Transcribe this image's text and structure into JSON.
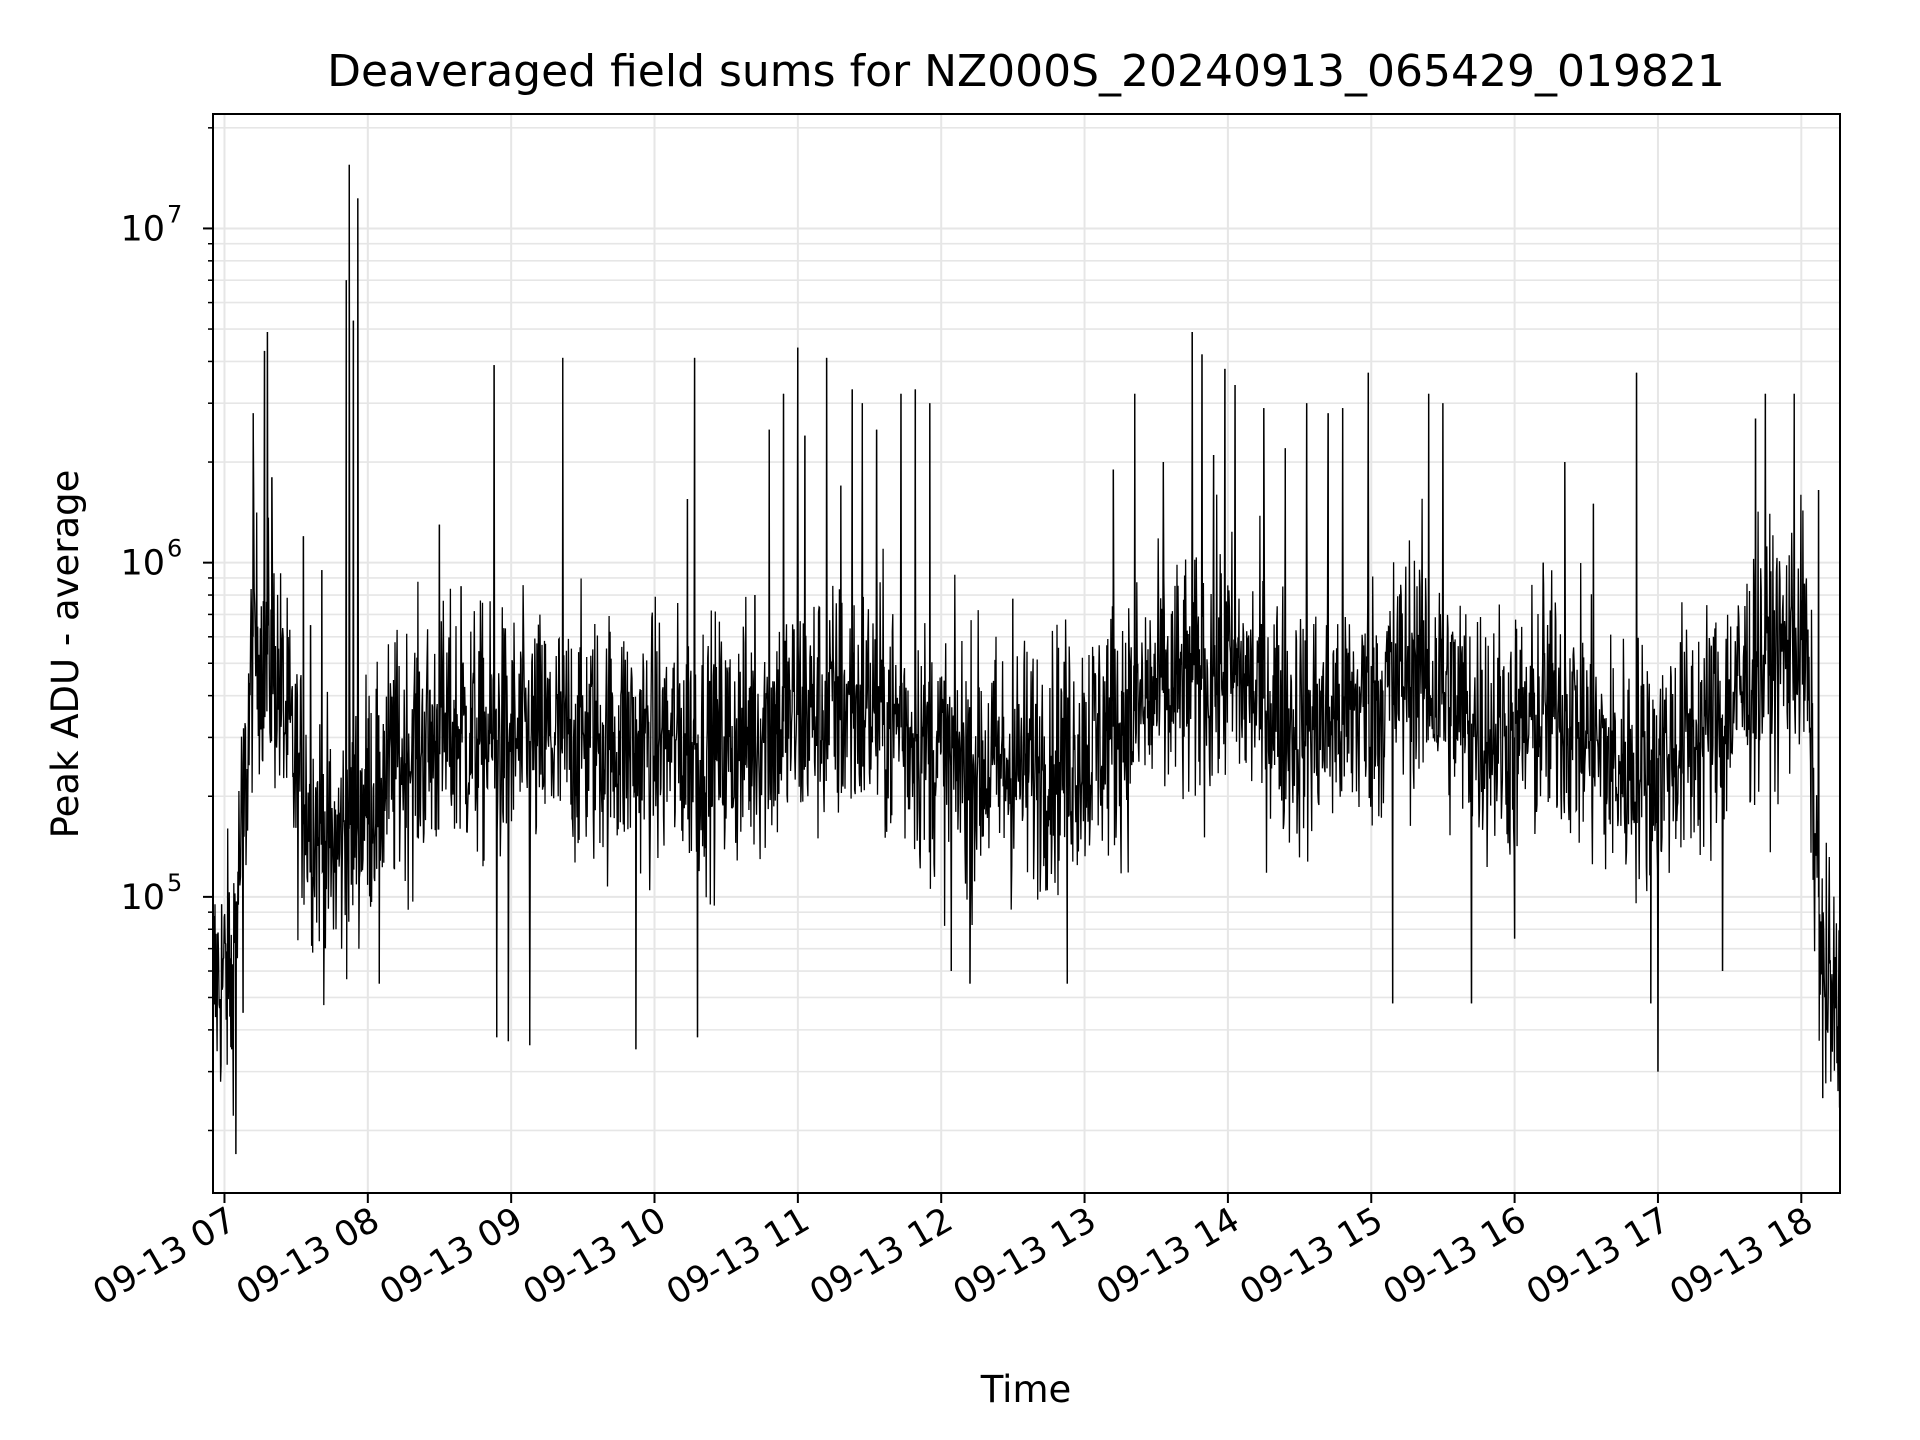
{
  "chart_data": {
    "type": "line",
    "title": "Deaveraged field sums for NZ000S_20240913_065429_019821",
    "xlabel": "Time",
    "ylabel": "Peak ADU - average",
    "yscale": "log",
    "ylim": [
      13000,
      22000000
    ],
    "xlim_hours": [
      6.92,
      18.27
    ],
    "grid": true,
    "line_color": "#000000",
    "grid_color": "#e6e6e6",
    "x_ticks": [
      {
        "hour": 7,
        "label": "09-13 07"
      },
      {
        "hour": 8,
        "label": "09-13 08"
      },
      {
        "hour": 9,
        "label": "09-13 09"
      },
      {
        "hour": 10,
        "label": "09-13 10"
      },
      {
        "hour": 11,
        "label": "09-13 11"
      },
      {
        "hour": 12,
        "label": "09-13 12"
      },
      {
        "hour": 13,
        "label": "09-13 13"
      },
      {
        "hour": 14,
        "label": "09-13 14"
      },
      {
        "hour": 15,
        "label": "09-13 15"
      },
      {
        "hour": 16,
        "label": "09-13 16"
      },
      {
        "hour": 17,
        "label": "09-13 17"
      },
      {
        "hour": 18,
        "label": "09-13 18"
      }
    ],
    "y_ticks": [
      {
        "value": 100000,
        "base": "10",
        "exp": "5"
      },
      {
        "value": 1000000,
        "base": "10",
        "exp": "6"
      },
      {
        "value": 10000000,
        "base": "10",
        "exp": "7"
      }
    ],
    "series": [
      {
        "name": "deaveraged field sums",
        "baseline": [
          [
            6.92,
            55000
          ],
          [
            7.0,
            58000
          ],
          [
            7.05,
            60000
          ],
          [
            7.15,
            220000
          ],
          [
            7.2,
            600000
          ],
          [
            7.35,
            500000
          ],
          [
            7.5,
            230000
          ],
          [
            7.75,
            130000
          ],
          [
            8.0,
            200000
          ],
          [
            8.3,
            280000
          ],
          [
            8.6,
            310000
          ],
          [
            9.0,
            290000
          ],
          [
            9.5,
            300000
          ],
          [
            10.0,
            290000
          ],
          [
            10.5,
            280000
          ],
          [
            11.0,
            350000
          ],
          [
            11.5,
            380000
          ],
          [
            12.0,
            260000
          ],
          [
            12.5,
            240000
          ],
          [
            13.0,
            280000
          ],
          [
            13.5,
            400000
          ],
          [
            14.0,
            480000
          ],
          [
            14.5,
            320000
          ],
          [
            15.0,
            380000
          ],
          [
            15.3,
            500000
          ],
          [
            15.7,
            330000
          ],
          [
            16.0,
            300000
          ],
          [
            16.3,
            380000
          ],
          [
            16.7,
            240000
          ],
          [
            17.0,
            260000
          ],
          [
            17.4,
            330000
          ],
          [
            17.7,
            480000
          ],
          [
            17.9,
            550000
          ],
          [
            18.0,
            600000
          ],
          [
            18.03,
            550000
          ],
          [
            18.1,
            140000
          ],
          [
            18.15,
            60000
          ],
          [
            18.27,
            40000
          ]
        ],
        "spikes": [
          [
            6.98,
            95000
          ],
          [
            7.05,
            35000
          ],
          [
            7.08,
            17000
          ],
          [
            7.13,
            45000
          ],
          [
            7.2,
            2800000
          ],
          [
            7.28,
            4300000
          ],
          [
            7.3,
            4900000
          ],
          [
            7.33,
            1800000
          ],
          [
            7.55,
            1200000
          ],
          [
            7.6,
            650000
          ],
          [
            7.68,
            950000
          ],
          [
            7.85,
            7000000
          ],
          [
            7.87,
            15500000
          ],
          [
            7.9,
            5300000
          ],
          [
            7.93,
            12300000
          ],
          [
            8.08,
            55000
          ],
          [
            8.5,
            1300000
          ],
          [
            8.65,
            850000
          ],
          [
            8.88,
            3900000
          ],
          [
            8.9,
            38000
          ],
          [
            8.98,
            37000
          ],
          [
            9.13,
            36000
          ],
          [
            9.36,
            4100000
          ],
          [
            9.87,
            35000
          ],
          [
            10.23,
            1550000
          ],
          [
            10.28,
            4100000
          ],
          [
            10.3,
            38000
          ],
          [
            10.7,
            800000
          ],
          [
            10.8,
            2500000
          ],
          [
            10.9,
            3200000
          ],
          [
            11.0,
            4400000
          ],
          [
            11.05,
            2400000
          ],
          [
            11.2,
            4100000
          ],
          [
            11.3,
            1700000
          ],
          [
            11.38,
            3300000
          ],
          [
            11.45,
            3000000
          ],
          [
            11.55,
            2500000
          ],
          [
            11.72,
            3200000
          ],
          [
            11.82,
            3300000
          ],
          [
            11.92,
            3000000
          ],
          [
            12.07,
            60000
          ],
          [
            12.2,
            55000
          ],
          [
            12.5,
            780000
          ],
          [
            12.88,
            55000
          ],
          [
            13.2,
            1900000
          ],
          [
            13.35,
            3200000
          ],
          [
            13.55,
            2000000
          ],
          [
            13.75,
            4900000
          ],
          [
            13.82,
            4200000
          ],
          [
            13.9,
            2100000
          ],
          [
            13.98,
            3800000
          ],
          [
            14.05,
            3400000
          ],
          [
            14.25,
            2900000
          ],
          [
            14.4,
            2200000
          ],
          [
            14.55,
            3000000
          ],
          [
            14.7,
            2800000
          ],
          [
            14.8,
            2900000
          ],
          [
            14.98,
            3700000
          ],
          [
            15.15,
            48000
          ],
          [
            15.4,
            3200000
          ],
          [
            15.5,
            3000000
          ],
          [
            15.7,
            48000
          ],
          [
            16.0,
            75000
          ],
          [
            16.2,
            1000000
          ],
          [
            16.35,
            2000000
          ],
          [
            16.55,
            1500000
          ],
          [
            16.85,
            3700000
          ],
          [
            16.95,
            48000
          ],
          [
            17.0,
            30000
          ],
          [
            17.45,
            60000
          ],
          [
            17.68,
            2700000
          ],
          [
            17.75,
            3200000
          ],
          [
            17.95,
            3200000
          ],
          [
            18.12,
            1650000
          ],
          [
            18.15,
            25000
          ],
          [
            18.27,
            25000
          ]
        ]
      }
    ]
  }
}
